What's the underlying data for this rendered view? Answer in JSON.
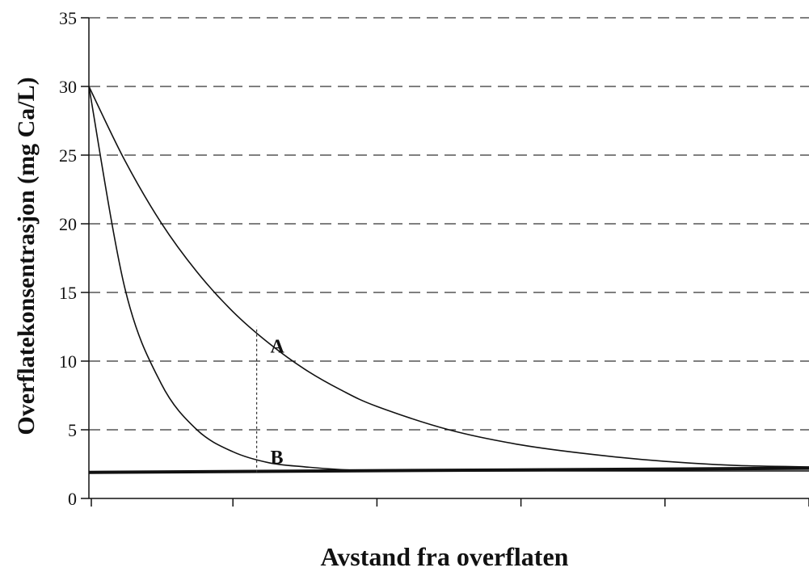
{
  "chart_data": {
    "type": "line",
    "title": "",
    "xlabel": "Avstand fra overflaten",
    "ylabel": "Overflatekonsentrasjon (mg Ca/L)",
    "ylim": [
      0,
      35
    ],
    "yticks": [
      0,
      5,
      10,
      15,
      20,
      25,
      30,
      35
    ],
    "xlim": [
      0,
      1
    ],
    "x_tick_labels": [],
    "grid": "horizontal-dashed",
    "series": [
      {
        "name": "A",
        "x": [
          0,
          0.05,
          0.1,
          0.15,
          0.2,
          0.25,
          0.3,
          0.35,
          0.4,
          0.5,
          0.6,
          0.7,
          0.8,
          0.9,
          1.0
        ],
        "y": [
          30,
          24.6,
          20.1,
          16.5,
          13.6,
          11.3,
          9.4,
          7.9,
          6.7,
          5.0,
          3.9,
          3.2,
          2.7,
          2.4,
          2.3
        ]
      },
      {
        "name": "B",
        "x": [
          0,
          0.05,
          0.1,
          0.15,
          0.2,
          0.25,
          0.3,
          0.35,
          0.4,
          0.5,
          0.6,
          0.7,
          0.8,
          0.9,
          1.0
        ],
        "y": [
          30,
          15.3,
          8.4,
          5.0,
          3.4,
          2.6,
          2.3,
          2.1,
          2.0,
          2.0,
          2.0,
          2.0,
          2.0,
          2.0,
          2.0
        ]
      },
      {
        "name": "",
        "x": [
          0,
          1.0
        ],
        "y": [
          1.9,
          2.2
        ]
      }
    ],
    "annotations": [
      {
        "text": "A",
        "x": 0.252,
        "y": 11.1
      },
      {
        "text": "B",
        "x": 0.252,
        "y": 3.0
      }
    ],
    "marker_line": {
      "x": 0.233,
      "y_from": 1.9,
      "y_to": 12.5
    }
  }
}
